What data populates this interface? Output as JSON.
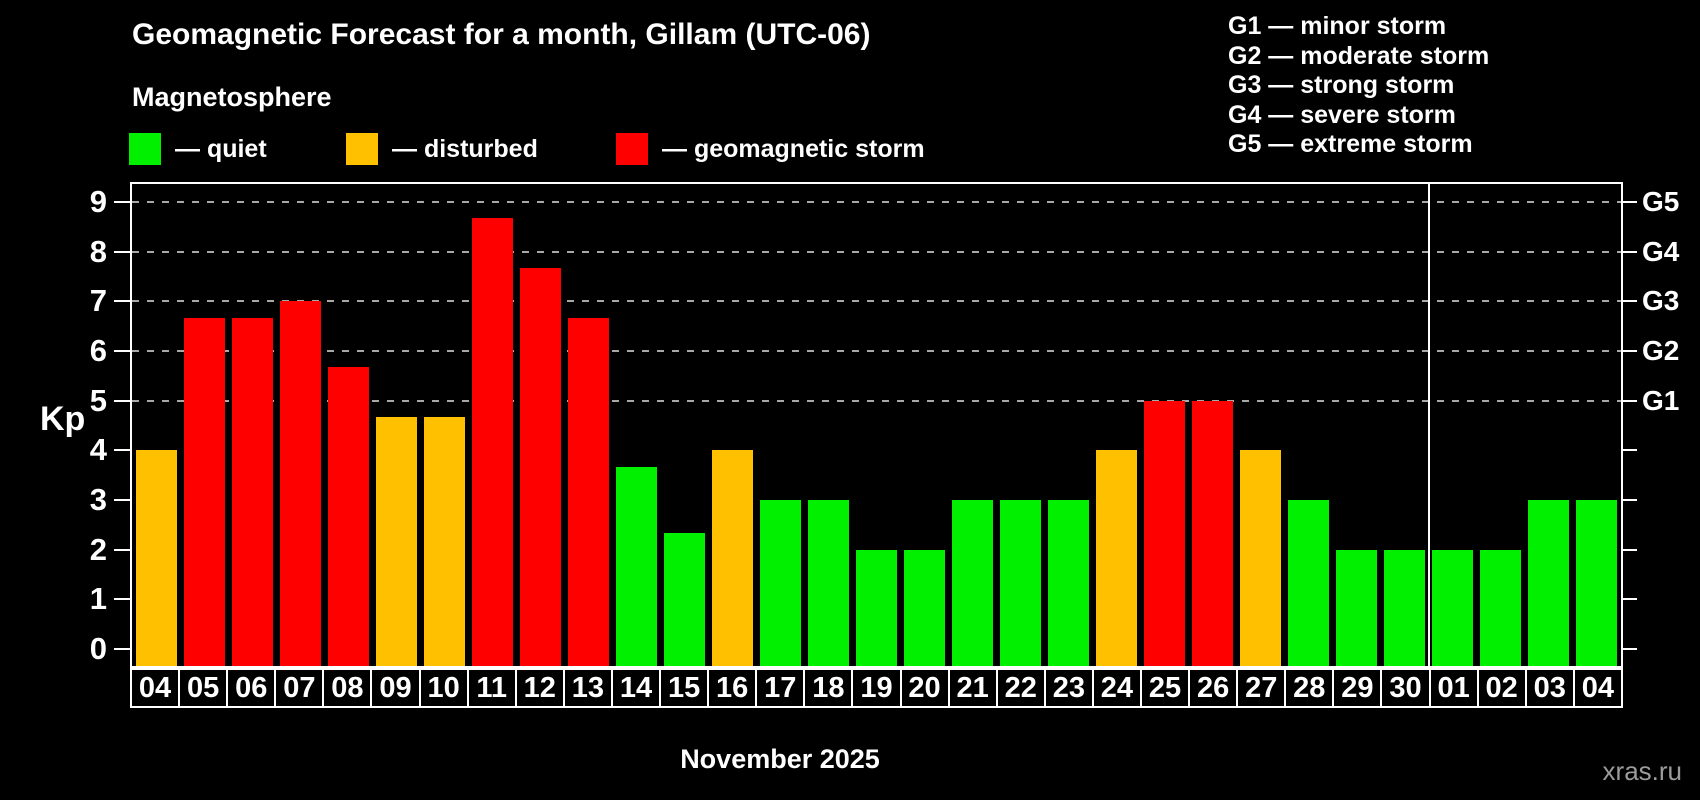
{
  "title": "Geomagnetic Forecast for a month, Gillam (UTC-06)",
  "subtitle": "Magnetosphere",
  "y_axis_label": "Kp",
  "month_label": "November 2025",
  "watermark": "xras.ru",
  "legend": {
    "items": [
      {
        "name": "quiet",
        "label": "— quiet",
        "color": "#00f000"
      },
      {
        "name": "disturbed",
        "label": "— disturbed",
        "color": "#ffc000"
      },
      {
        "name": "storm",
        "label": "— geomagnetic storm",
        "color": "#ff0000"
      }
    ]
  },
  "g_legend": {
    "items": [
      {
        "label": "G1 — minor storm"
      },
      {
        "label": "G2 — moderate storm"
      },
      {
        "label": "G3 — strong storm"
      },
      {
        "label": "G4 — severe storm"
      },
      {
        "label": "G5 — extreme storm"
      }
    ]
  },
  "chart_data": {
    "type": "bar",
    "title": "Geomagnetic Forecast for a month, Gillam (UTC-06)",
    "xlabel": "November 2025",
    "ylabel": "Kp",
    "ylim": [
      0,
      9
    ],
    "y_ticks": [
      0,
      1,
      2,
      3,
      4,
      5,
      6,
      7,
      8,
      9
    ],
    "grid_levels_kp": [
      5,
      6,
      7,
      8,
      9
    ],
    "grid_style": "dashed",
    "legend_position": "top",
    "right_axis_labels": [
      {
        "text": "G1",
        "kp": 5
      },
      {
        "text": "G2",
        "kp": 6
      },
      {
        "text": "G3",
        "kp": 7
      },
      {
        "text": "G4",
        "kp": 8
      },
      {
        "text": "G5",
        "kp": 9
      }
    ],
    "month_boundary_after_index": 26,
    "categories": [
      "04",
      "05",
      "06",
      "07",
      "08",
      "09",
      "10",
      "11",
      "12",
      "13",
      "14",
      "15",
      "16",
      "17",
      "18",
      "19",
      "20",
      "21",
      "22",
      "23",
      "24",
      "25",
      "26",
      "27",
      "28",
      "29",
      "30",
      "01",
      "02",
      "03",
      "04"
    ],
    "values": [
      4,
      6.67,
      6.67,
      7,
      5.67,
      4.67,
      4.67,
      8.67,
      7.67,
      6.67,
      3.67,
      2.33,
      4,
      3,
      3,
      2,
      2,
      3,
      3,
      3,
      4,
      5,
      5,
      4,
      3,
      2,
      2,
      2,
      2,
      3,
      3
    ],
    "statuses": [
      "disturbed",
      "storm",
      "storm",
      "storm",
      "storm",
      "disturbed",
      "disturbed",
      "storm",
      "storm",
      "storm",
      "quiet",
      "quiet",
      "disturbed",
      "quiet",
      "quiet",
      "quiet",
      "quiet",
      "quiet",
      "quiet",
      "quiet",
      "disturbed",
      "storm",
      "storm",
      "disturbed",
      "quiet",
      "quiet",
      "quiet",
      "quiet",
      "quiet",
      "quiet",
      "quiet"
    ],
    "palette": {
      "quiet": "#00f000",
      "disturbed": "#ffc000",
      "storm": "#ff0000"
    }
  }
}
